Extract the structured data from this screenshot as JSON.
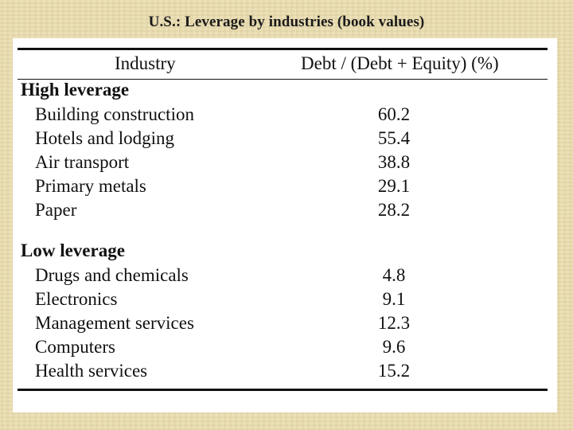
{
  "slide": {
    "title": "U.S.: Leverage by industries (book values)"
  },
  "table": {
    "headers": [
      "Industry",
      "Debt / (Debt + Equity) (%)"
    ],
    "groups": [
      {
        "label": "High leverage",
        "rows": [
          {
            "industry": "Building construction",
            "value": "60.2"
          },
          {
            "industry": "Hotels and lodging",
            "value": "55.4"
          },
          {
            "industry": "Air transport",
            "value": "38.8"
          },
          {
            "industry": "Primary metals",
            "value": "29.1"
          },
          {
            "industry": "Paper",
            "value": "28.2"
          }
        ]
      },
      {
        "label": "Low leverage",
        "rows": [
          {
            "industry": "Drugs and chemicals",
            "value": "4.8"
          },
          {
            "industry": "Electronics",
            "value": "9.1"
          },
          {
            "industry": "Management services",
            "value": "12.3"
          },
          {
            "industry": "Computers",
            "value": "9.6"
          },
          {
            "industry": "Health services",
            "value": "15.2"
          }
        ]
      }
    ]
  }
}
